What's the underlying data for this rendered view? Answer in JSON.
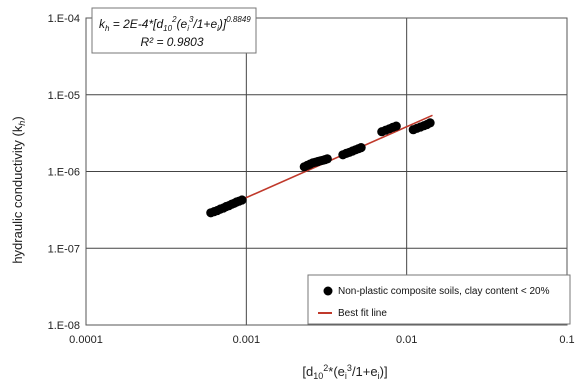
{
  "chart_data": {
    "type": "scatter",
    "xscale": "log",
    "yscale": "log",
    "xlim": [
      0.0001,
      0.1
    ],
    "ylim": [
      1e-08,
      0.0001
    ],
    "grid": true,
    "legend_position": "bottom-right",
    "x_ticks": [
      {
        "value": 0.0001,
        "label": "0.0001"
      },
      {
        "value": 0.001,
        "label": "0.001"
      },
      {
        "value": 0.01,
        "label": "0.01"
      },
      {
        "value": 0.1,
        "label": "0.1"
      }
    ],
    "y_ticks": [
      {
        "value": 1e-08,
        "label": "1.E-08"
      },
      {
        "value": 1e-07,
        "label": "1.E-07"
      },
      {
        "value": 1e-06,
        "label": "1.E-06"
      },
      {
        "value": 1e-05,
        "label": "1.E-05"
      },
      {
        "value": 0.0001,
        "label": "1.E-04"
      }
    ],
    "xlabel": {
      "base": "[d",
      "sub1": "10",
      "sup1": "2",
      "mid": "*(e",
      "sub2": "i",
      "sup2": "3",
      "end": "/1+e",
      "sub3": "i",
      "close": ")]"
    },
    "ylabel": {
      "base": "hydraulic conductivity (k",
      "sub": "h",
      "close": ")"
    },
    "equation": {
      "lhs": "k",
      "lhs_sub": "h",
      "body": " = 2E-4*[d",
      "body_sub": "10",
      "body_sup": "2",
      "body2": "(e",
      "body_sub2": "i",
      "body_sup2": "3",
      "body3": "/1+e",
      "body_sub3": "i",
      "body4": ")]",
      "exponent": "0.8849"
    },
    "r_squared": "R² = 0.9803",
    "series": [
      {
        "name": "Non-plastic composite soils, clay content < 20%",
        "kind": "scatter",
        "color": "#000000",
        "points": [
          [
            0.0006,
            2.9e-07
          ],
          [
            0.00063,
            3e-07
          ],
          [
            0.00066,
            3.1e-07
          ],
          [
            0.00069,
            3.25e-07
          ],
          [
            0.00072,
            3.35e-07
          ],
          [
            0.00075,
            3.5e-07
          ],
          [
            0.00078,
            3.6e-07
          ],
          [
            0.00081,
            3.75e-07
          ],
          [
            0.00084,
            3.85e-07
          ],
          [
            0.00087,
            4e-07
          ],
          [
            0.0009,
            4.1e-07
          ],
          [
            0.00094,
            4.25e-07
          ],
          [
            0.0023,
            1.15e-06
          ],
          [
            0.0024,
            1.2e-06
          ],
          [
            0.0025,
            1.25e-06
          ],
          [
            0.0026,
            1.3e-06
          ],
          [
            0.0027,
            1.32e-06
          ],
          [
            0.0028,
            1.35e-06
          ],
          [
            0.0029,
            1.38e-06
          ],
          [
            0.003,
            1.4e-06
          ],
          [
            0.0031,
            1.43e-06
          ],
          [
            0.0032,
            1.46e-06
          ],
          [
            0.004,
            1.65e-06
          ],
          [
            0.0042,
            1.72e-06
          ],
          [
            0.0044,
            1.78e-06
          ],
          [
            0.0046,
            1.85e-06
          ],
          [
            0.0048,
            1.92e-06
          ],
          [
            0.005,
            1.98e-06
          ],
          [
            0.0052,
            2.05e-06
          ],
          [
            0.007,
            3.3e-06
          ],
          [
            0.0074,
            3.45e-06
          ],
          [
            0.0078,
            3.6e-06
          ],
          [
            0.0082,
            3.75e-06
          ],
          [
            0.0086,
            3.9e-06
          ],
          [
            0.011,
            3.5e-06
          ],
          [
            0.0116,
            3.65e-06
          ],
          [
            0.0122,
            3.8e-06
          ],
          [
            0.0128,
            3.95e-06
          ],
          [
            0.0134,
            4.1e-06
          ],
          [
            0.014,
            4.3e-06
          ]
        ]
      },
      {
        "name": "Best fit line",
        "kind": "line",
        "color": "#c0392b",
        "points": [
          [
            0.0006,
            2.85e-07
          ],
          [
            0.0145,
            5.4e-06
          ]
        ]
      }
    ]
  }
}
